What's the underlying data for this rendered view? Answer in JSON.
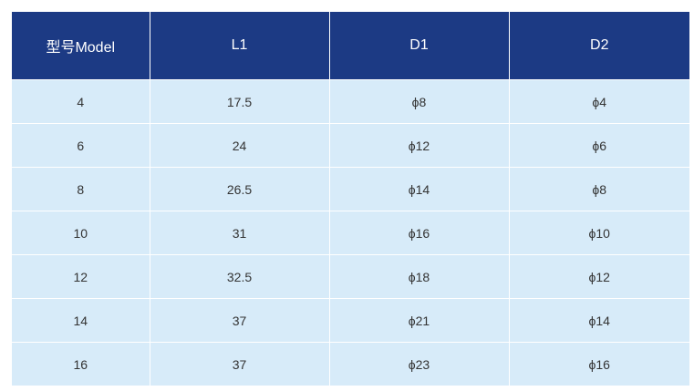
{
  "table": {
    "headers": [
      "型号Model",
      "L1",
      "D1",
      "D2"
    ],
    "rows": [
      [
        "4",
        "17.5",
        "ϕ8",
        "ϕ4"
      ],
      [
        "6",
        "24",
        "ϕ12",
        "ϕ6"
      ],
      [
        "8",
        "26.5",
        "ϕ14",
        "ϕ8"
      ],
      [
        "10",
        "31",
        "ϕ16",
        "ϕ10"
      ],
      [
        "12",
        "32.5",
        "ϕ18",
        "ϕ12"
      ],
      [
        "14",
        "37",
        "ϕ21",
        "ϕ14"
      ],
      [
        "16",
        "37",
        "ϕ23",
        "ϕ16"
      ]
    ]
  },
  "colors": {
    "header_bg": "#1c3a84",
    "header_text": "#ffffff",
    "cell_bg": "#d7ebf9",
    "cell_text": "#333333"
  }
}
